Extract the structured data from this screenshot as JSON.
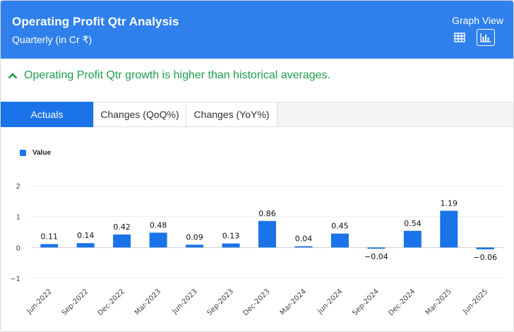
{
  "header": {
    "title": "Operating Profit Qtr Analysis",
    "subtitle": "Quarterly (in Cr ₹)",
    "graph_view_label": "Graph View",
    "color": "#2f80ed"
  },
  "insight": {
    "text": "Operating Profit Qtr growth is higher than historical averages.",
    "color": "#1e9e4a"
  },
  "tabs": [
    {
      "label": "Actuals",
      "active": true
    },
    {
      "label": "Changes (QoQ%)",
      "active": false
    },
    {
      "label": "Changes (YoY%)",
      "active": false
    }
  ],
  "legend": {
    "label": "Value"
  },
  "chart_data": {
    "type": "bar",
    "categories": [
      "Jun-2022",
      "Sep-2022",
      "Dec-2022",
      "Mar-2023",
      "Jun-2023",
      "Sep-2023",
      "Dec-2023",
      "Mar-2024",
      "Jun-2024",
      "Sep-2024",
      "Dec-2024",
      "Mar-2025",
      "Jun-2025"
    ],
    "series": [
      {
        "name": "Value",
        "values": [
          0.11,
          0.14,
          0.42,
          0.48,
          0.09,
          0.13,
          0.86,
          0.04,
          0.45,
          -0.04,
          0.54,
          1.19,
          -0.06
        ],
        "color": "#1a73e8"
      }
    ],
    "data_labels": [
      "0.11",
      "0.14",
      "0.42",
      "0.48",
      "0.09",
      "0.13",
      "0.86",
      "0.04",
      "0.45",
      "−0.04",
      "0.54",
      "1.19",
      "−0.06"
    ],
    "y_ticks": [
      "2",
      "1",
      "0",
      "−1"
    ],
    "y_tick_values": [
      2,
      1,
      0,
      -1
    ],
    "ylim": [
      -1,
      2
    ],
    "grid": true,
    "legend_position": "top-left"
  }
}
